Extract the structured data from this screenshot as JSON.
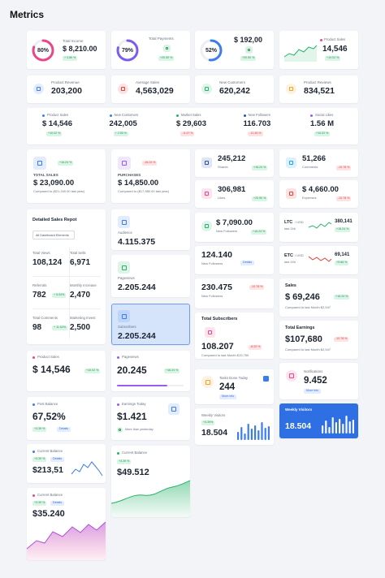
{
  "header": {
    "title": "Metrics"
  },
  "ring_cards": [
    {
      "percent": "80%",
      "label": "Total Income",
      "value": "$ 8,210.00",
      "change": "+ 3.86 %"
    },
    {
      "percent": "79%",
      "label": "Total Payments",
      "change": "+20.50 %"
    },
    {
      "percent": "52%",
      "value": "$ 192,00",
      "change": "+20.50 %"
    }
  ],
  "product_sales_chart": {
    "label": "Product Sales",
    "value": "14,546",
    "change": "+10.02 %"
  },
  "icon_stats": [
    {
      "label": "Product Revenue",
      "value": "203,200"
    },
    {
      "label": "Average Sales",
      "value": "4,563,029"
    },
    {
      "label": "New Customers",
      "value": "620,242"
    },
    {
      "label": "Product Reviews",
      "value": "834,521"
    }
  ],
  "strip": [
    {
      "label": "Product Sales",
      "value": "$ 14,546",
      "change": "+10.02 %"
    },
    {
      "label": "New Customers",
      "value": "242,005",
      "change": "+ 2.55 %"
    },
    {
      "label": "Market Sales",
      "value": "$ 29,603",
      "change": "- 6.47 %"
    },
    {
      "label": "New Followers",
      "value": "116.703",
      "change": "- 11.45 %"
    },
    {
      "label": "Social Likes",
      "value": "1.56 M",
      "change": "+10.02 %"
    }
  ],
  "sales_cards": [
    {
      "label": "TOTAL SALES",
      "value": "$ 23,090.00",
      "note": "Compared to ($21,340.00 last year)",
      "change": "+16.24 %"
    },
    {
      "label": "PURCHASES",
      "value": "$ 14,850.00",
      "note": "Compared to ($17,980.00 last year)",
      "change": "-16.24 %"
    }
  ],
  "social": [
    {
      "value": "245,212",
      "label": "Shares",
      "change": "+16.24 %"
    },
    {
      "value": "51,266",
      "label": "Comments",
      "change": "-10.78 %"
    },
    {
      "value": "306,981",
      "label": "Likes",
      "change": "+20.50 %"
    },
    {
      "value": "$ 4,660.00",
      "label": "Expenses",
      "change": "-10.78 %"
    }
  ],
  "report": {
    "title": "Detailed Sales Repot",
    "dropdown": "All Dashboard Elements",
    "items": [
      {
        "label": "Total Views",
        "value": "108,124"
      },
      {
        "label": "Total Sells",
        "value": "6,971"
      },
      {
        "label": "Referrals",
        "value": "782",
        "change": "+ 5.04%"
      },
      {
        "label": "Monthly Increase",
        "value": "2,470"
      },
      {
        "label": "Total Comments",
        "value": "98",
        "change": "+ 11.62%"
      },
      {
        "label": "Marketing Invest",
        "value": "2,500"
      }
    ]
  },
  "audience": [
    {
      "label": "Audience",
      "value": "4.115.375"
    },
    {
      "label": "Pageviews",
      "value": "2.205.244"
    },
    {
      "label": "Subscribers",
      "value": "2.205.244"
    }
  ],
  "followers": [
    {
      "value": "$ 7,090.00",
      "label": "New Followers",
      "change": "+16.24 %"
    },
    {
      "value": "124.140",
      "label": "New Followers",
      "button": "Details"
    },
    {
      "value": "230.475",
      "label": "New Followers",
      "change": "-10.78 %"
    }
  ],
  "crypto": [
    {
      "pair": "LTC",
      "unit": "/ USD",
      "period": "last 24h",
      "value": "380,141",
      "change": "+16.24 %"
    },
    {
      "pair": "ETC",
      "unit": "/ USD",
      "period": "last 24h",
      "value": "69,141",
      "change": "+9.68 %"
    }
  ],
  "comparisons": [
    {
      "label": "Sales",
      "value": "$ 69,246",
      "change": "+16.24 %",
      "note": "Compared to last Month $2,547"
    },
    {
      "label": "Total Earnings",
      "value": "$107,680",
      "change": "-10.78 %",
      "note": "Compared to last Month $2,547"
    }
  ],
  "subscribers": {
    "label": "Total Subscribers",
    "value": "108.207",
    "change": "-8.20 %",
    "note": "Compared to last Month $19,750"
  },
  "tasks": {
    "label": "Tasks Done Today",
    "value": "244",
    "button": "More info"
  },
  "notifications": {
    "label": "Notifications",
    "value": "9.452",
    "button": "More info"
  },
  "weekly": [
    {
      "label": "Weekly Visitors",
      "change": "+3.39%",
      "value": "18.504"
    },
    {
      "label": "Weekly Visitors",
      "value": "18.504"
    }
  ],
  "product_sales": {
    "label": "Product Sales",
    "value": "$ 14,546",
    "change": "+10.02 %"
  },
  "pageviews": {
    "label": "Pageviews",
    "value": "20.245",
    "change": "+16.24 %"
  },
  "post_balance": {
    "label": "Post Balance",
    "value": "67,52%",
    "change": "+3.39 %",
    "button": "Details"
  },
  "earnings": {
    "label": "Earnings Today",
    "value": "$1.421",
    "note": "More than yesterday"
  },
  "balances": [
    {
      "label": "Current Balance",
      "change": "+3.39 %",
      "button": "Details",
      "value": "$213,51"
    },
    {
      "label": "Current Balance",
      "change": "+3.39 %",
      "value": "$49.512"
    },
    {
      "label": "Current Balance",
      "change": "+3.39 %",
      "button": "Details",
      "value": "$35.240"
    }
  ]
}
